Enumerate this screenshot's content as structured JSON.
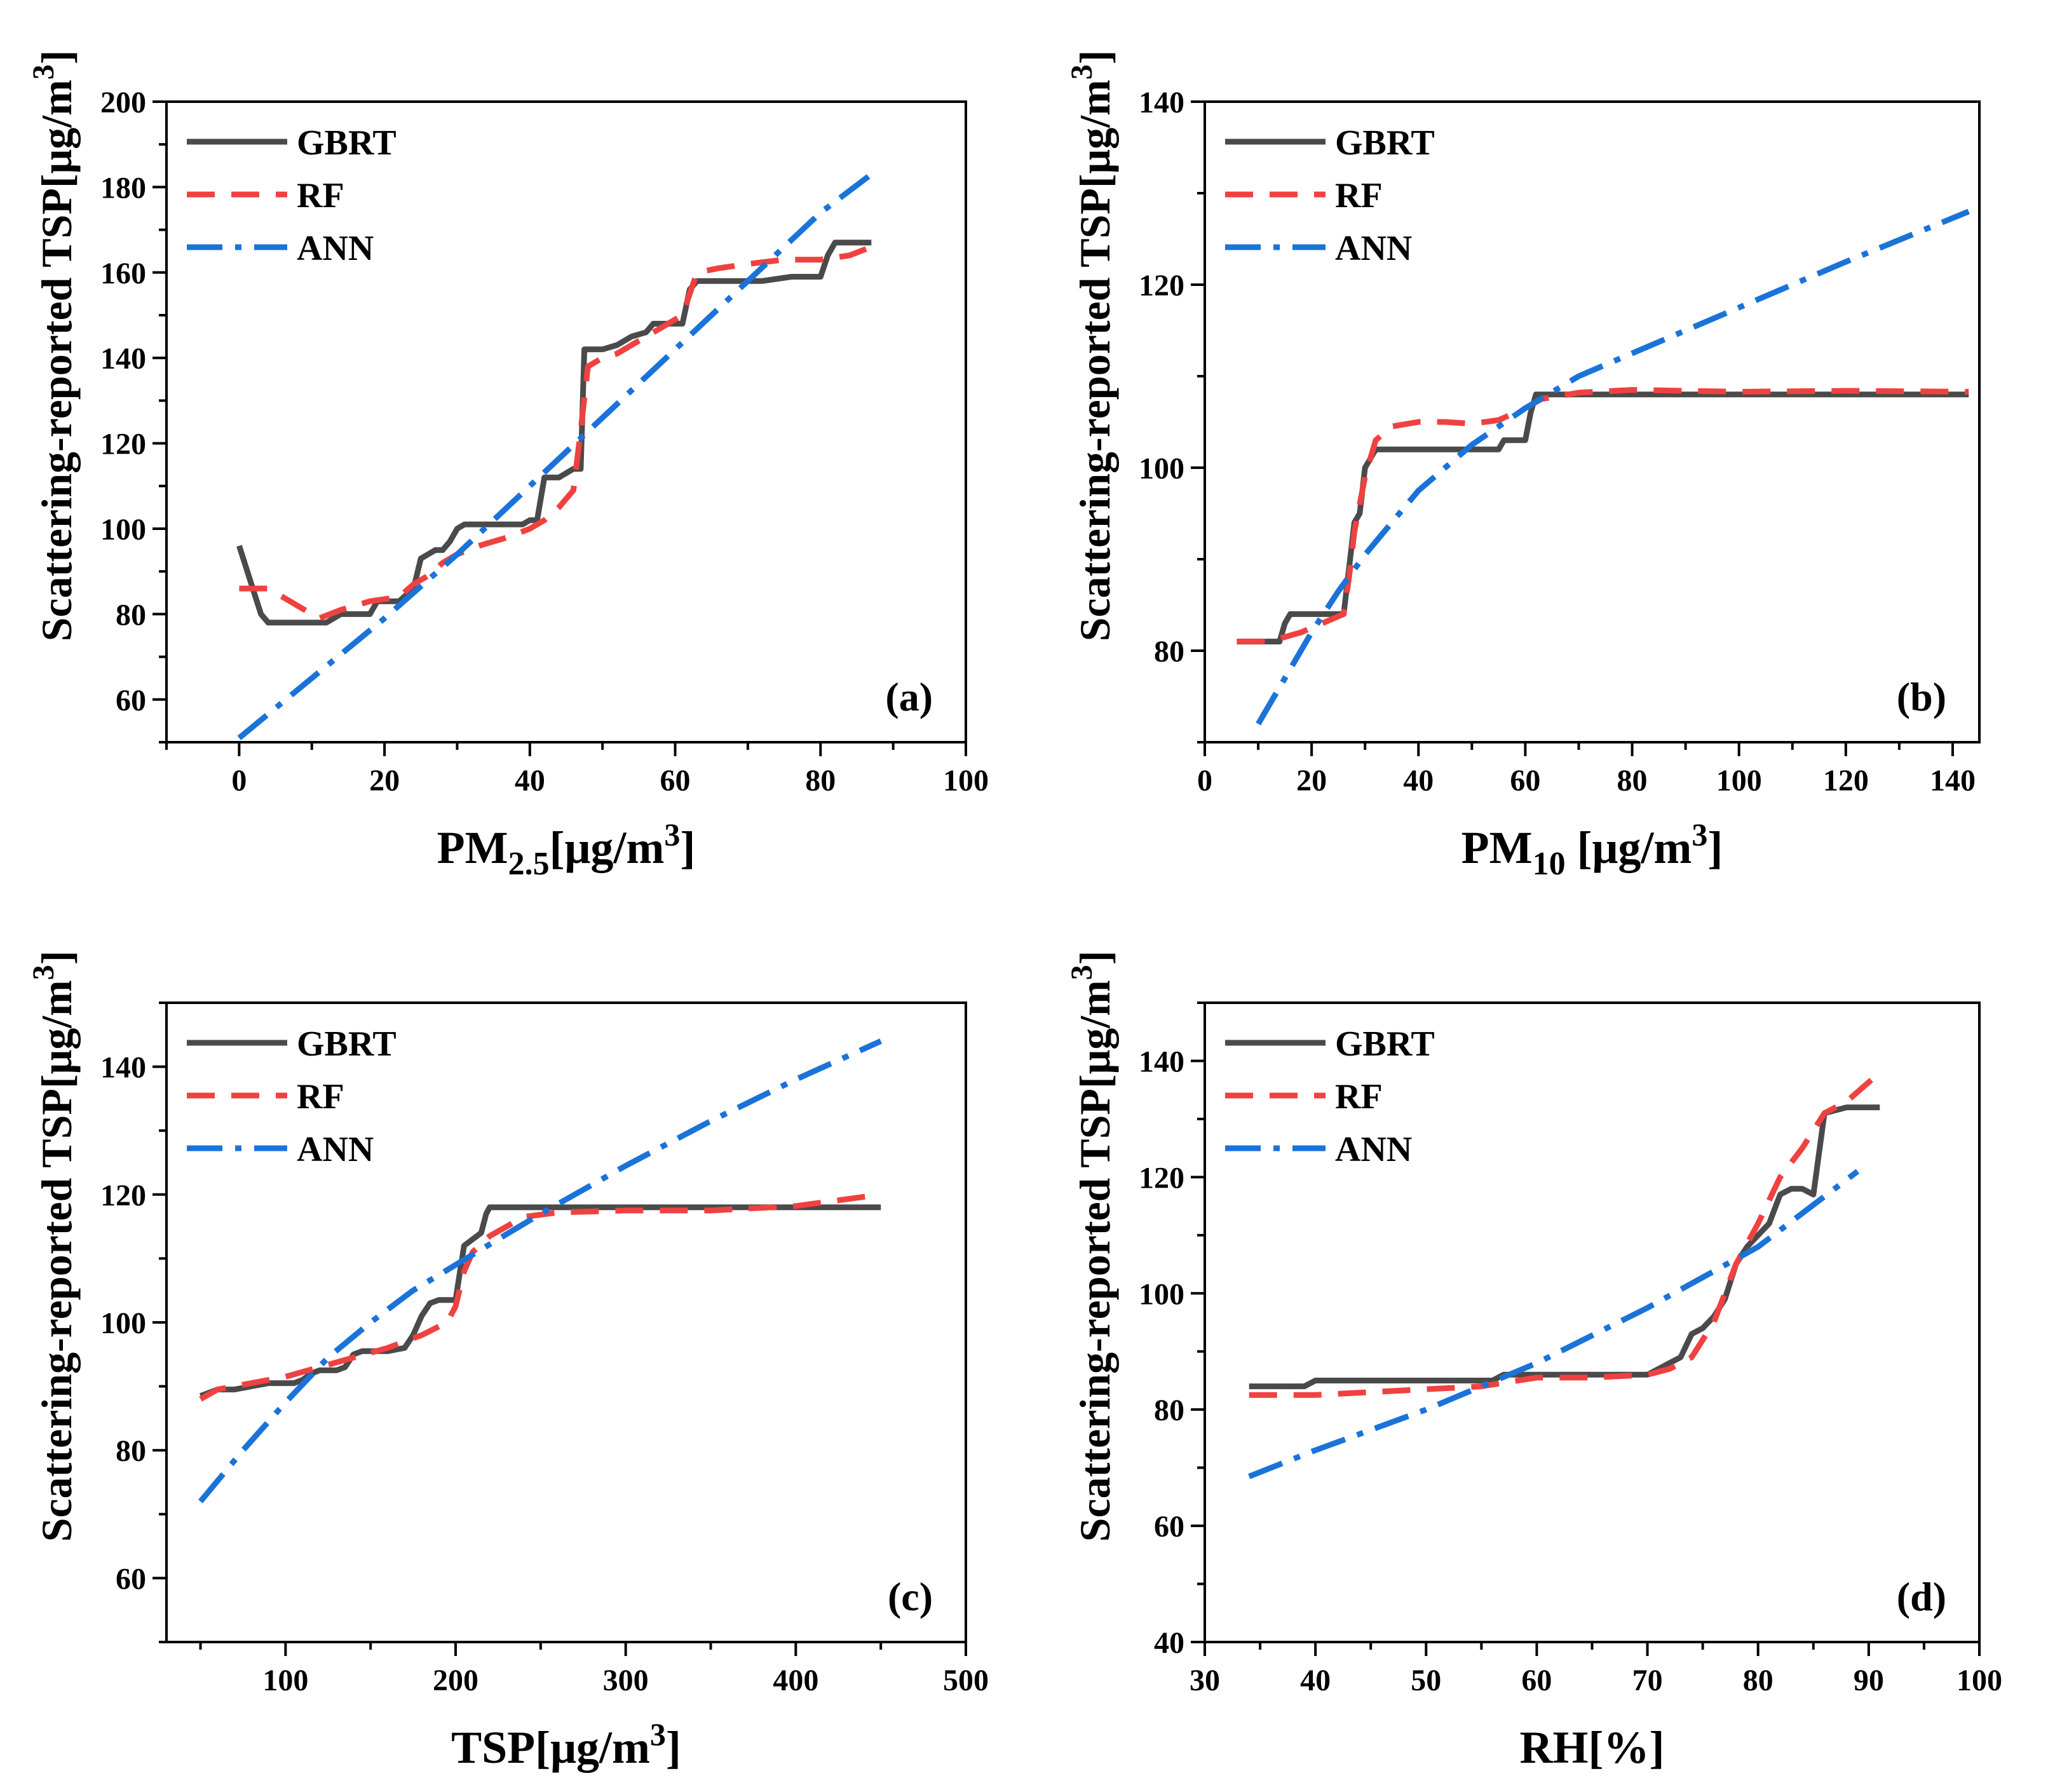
{
  "figure": {
    "legend_labels": [
      "GBRT",
      "RF",
      "ANN"
    ],
    "colors": {
      "GBRT": "#4a4a4a",
      "RF": "#f04141",
      "ANN": "#1a73d9"
    }
  },
  "chart_data": [
    {
      "type": "line",
      "panel": "(a)",
      "xlabel": {
        "main": "PM",
        "sub": "2.5",
        "unit": "[μg/m",
        "sup": "3",
        "close": "]"
      },
      "ylabel": {
        "main": "Scattering-reported TSP[μg/m",
        "sup": "3",
        "close": "]"
      },
      "xlim": [
        -10,
        100
      ],
      "ylim": [
        50,
        200
      ],
      "xticks": [
        0,
        20,
        40,
        60,
        80,
        100
      ],
      "yticks": [
        60,
        80,
        100,
        120,
        140,
        160,
        180,
        200
      ],
      "legend_position": "top-left",
      "series": [
        {
          "name": "GBRT",
          "x": [
            0,
            1.5,
            3,
            4,
            6,
            8,
            10,
            12,
            13,
            14,
            16,
            18,
            19,
            20,
            22,
            24,
            25,
            26,
            27,
            28,
            29,
            30,
            31,
            34,
            36,
            38,
            39,
            40,
            41,
            42,
            43,
            44,
            45,
            46,
            47,
            47.5,
            48,
            50,
            52,
            54,
            56,
            57,
            58,
            60,
            61,
            62,
            63,
            64,
            70,
            72,
            76,
            80,
            81,
            82,
            84,
            87
          ],
          "y": [
            96,
            88,
            80,
            78,
            78,
            78,
            78,
            78,
            79,
            80,
            80,
            80,
            83,
            83,
            83,
            86,
            93,
            94,
            95,
            95,
            97,
            100,
            101,
            101,
            101,
            101,
            101,
            102,
            102,
            112,
            112,
            112,
            113,
            114,
            114,
            142,
            142,
            142,
            143,
            145,
            146,
            148,
            148,
            148,
            148,
            156,
            158,
            158,
            158,
            158,
            159,
            159,
            164,
            167,
            167,
            167
          ]
        },
        {
          "name": "RF",
          "x": [
            0,
            4,
            8,
            11,
            14,
            18,
            22,
            24,
            26,
            28,
            30,
            33,
            37,
            40,
            42,
            44,
            46,
            47,
            48,
            50,
            52,
            55,
            58,
            61,
            63,
            66,
            70,
            75,
            80,
            84,
            87
          ],
          "y": [
            86,
            86,
            82,
            79,
            81,
            83,
            84,
            87,
            89,
            92,
            94,
            96,
            98,
            100,
            102,
            105,
            109,
            123,
            138,
            140,
            141,
            144,
            147,
            150,
            160,
            161,
            162,
            163,
            163,
            164,
            166
          ]
        },
        {
          "name": "ANN",
          "x": [
            0,
            10,
            20,
            30,
            40,
            50,
            60,
            70,
            80,
            87
          ],
          "y": [
            51,
            65,
            79,
            94,
            110,
            126,
            142,
            158,
            174,
            183
          ]
        }
      ]
    },
    {
      "type": "line",
      "panel": "(b)",
      "xlabel": {
        "main": "PM",
        "sub": "10",
        "unit": " [μg/m",
        "sup": "3",
        "close": "]"
      },
      "ylabel": {
        "main": "Scattering-reported TSP[μg/m",
        "sup": "3",
        "close": "]"
      },
      "xlim": [
        0,
        145
      ],
      "ylim": [
        70,
        140
      ],
      "xticks": [
        0,
        20,
        40,
        60,
        80,
        100,
        120,
        140
      ],
      "yticks": [
        80,
        100,
        120,
        140
      ],
      "legend_position": "top-left",
      "series": [
        {
          "name": "GBRT",
          "x": [
            6,
            12,
            14,
            15,
            16,
            18,
            20,
            24,
            26,
            27,
            28,
            29,
            30,
            31,
            32,
            34,
            40,
            50,
            55,
            56,
            60,
            61,
            62,
            63,
            70,
            80,
            100,
            120,
            143
          ],
          "y": [
            81,
            81,
            81,
            83,
            84,
            84,
            84,
            84,
            84,
            89,
            94,
            95,
            100,
            101,
            102,
            102,
            102,
            102,
            102,
            103,
            103,
            106,
            108,
            108,
            108,
            108,
            108,
            108,
            108
          ]
        },
        {
          "name": "RF",
          "x": [
            6,
            12,
            18,
            22,
            26,
            27,
            28,
            29,
            30,
            32,
            35,
            40,
            45,
            50,
            55,
            60,
            63,
            70,
            80,
            100,
            120,
            143
          ],
          "y": [
            81,
            81,
            82,
            83,
            84,
            88,
            93,
            96,
            99,
            103,
            104.5,
            105,
            105,
            104.8,
            105.2,
            106.5,
            107.5,
            108.2,
            108.5,
            108.3,
            108.4,
            108.3
          ]
        },
        {
          "name": "ANN",
          "x": [
            10,
            15,
            20,
            25,
            30,
            35,
            40,
            50,
            60,
            70,
            80,
            100,
            120,
            143
          ],
          "y": [
            72,
            77,
            82,
            86.5,
            90.5,
            94,
            97.5,
            102.5,
            106.5,
            110,
            112.5,
            117.5,
            122.5,
            128
          ]
        }
      ]
    },
    {
      "type": "line",
      "panel": "(c)",
      "xlabel": {
        "main": "TSP",
        "sub": "",
        "unit": "[μg/m",
        "sup": "3",
        "close": "]"
      },
      "ylabel": {
        "main": "Scattering-reported TSP[μg/m",
        "sup": "3",
        "close": "]"
      },
      "xlim": [
        30,
        500
      ],
      "ylim": [
        50,
        150
      ],
      "xticks": [
        100,
        200,
        300,
        400,
        500
      ],
      "yticks": [
        60,
        80,
        100,
        120,
        140
      ],
      "legend_position": "top-left",
      "series": [
        {
          "name": "GBRT",
          "x": [
            50,
            55,
            60,
            70,
            80,
            90,
            100,
            105,
            110,
            115,
            120,
            130,
            135,
            140,
            145,
            150,
            160,
            170,
            175,
            180,
            185,
            190,
            195,
            200,
            202,
            205,
            210,
            215,
            218,
            220,
            225,
            250,
            300,
            350,
            400,
            450
          ],
          "y": [
            88.5,
            89,
            89.5,
            89.5,
            90,
            90.5,
            90.5,
            90.5,
            91,
            92,
            92.5,
            92.5,
            93,
            95,
            95.5,
            95.5,
            95.5,
            96,
            98,
            101,
            103,
            103.5,
            103.5,
            103.5,
            107,
            112,
            113,
            114,
            117,
            118,
            118,
            118,
            118,
            118,
            118,
            118
          ]
        },
        {
          "name": "RF",
          "x": [
            50,
            60,
            80,
            100,
            120,
            140,
            160,
            180,
            195,
            200,
            205,
            210,
            220,
            240,
            260,
            300,
            350,
            400,
            450
          ],
          "y": [
            88,
            89.5,
            90.5,
            91.5,
            93,
            94.5,
            96,
            98,
            100,
            102.5,
            108,
            111,
            113.5,
            116.5,
            117.2,
            117.5,
            117.5,
            118.2,
            120
          ]
        },
        {
          "name": "ANN",
          "x": [
            50,
            75,
            100,
            125,
            150,
            175,
            200,
            225,
            250,
            300,
            350,
            400,
            450
          ],
          "y": [
            72,
            80,
            87.5,
            94.5,
            100,
            105,
            109,
            113,
            117,
            124.5,
            131.5,
            138,
            144
          ]
        }
      ]
    },
    {
      "type": "line",
      "panel": "(d)",
      "xlabel": {
        "main": "RH[%]",
        "sub": "",
        "unit": "",
        "sup": "",
        "close": ""
      },
      "ylabel": {
        "main": "Scattering-reported TSP[μg/m",
        "sup": "3",
        "close": "]"
      },
      "xlim": [
        30,
        100
      ],
      "ylim": [
        40,
        150
      ],
      "xticks": [
        30,
        40,
        50,
        60,
        70,
        80,
        90,
        100
      ],
      "yticks": [
        40,
        60,
        80,
        100,
        120,
        140
      ],
      "legend_position": "top-left",
      "series": [
        {
          "name": "GBRT",
          "x": [
            34,
            39,
            40,
            45,
            50,
            56,
            57,
            60,
            65,
            70,
            71,
            72,
            73,
            74,
            75,
            76,
            77,
            78,
            79,
            80,
            81,
            82,
            83,
            84,
            85,
            86,
            88,
            91
          ],
          "y": [
            84,
            84,
            85,
            85,
            85,
            85,
            86,
            86,
            86,
            86,
            87,
            88,
            89,
            93,
            94,
            96,
            99,
            105,
            108,
            110,
            112,
            117,
            118,
            118,
            117,
            131,
            132,
            132
          ]
        },
        {
          "name": "RF",
          "x": [
            34,
            40,
            45,
            50,
            55,
            60,
            65,
            70,
            72,
            74,
            76,
            78,
            80,
            82,
            84,
            86,
            88,
            91
          ],
          "y": [
            82.5,
            82.5,
            83,
            83.5,
            84,
            85.5,
            85.5,
            86,
            87,
            89,
            95,
            105,
            112,
            120,
            125,
            131,
            133,
            138
          ]
        },
        {
          "name": "ANN",
          "x": [
            34,
            40,
            50,
            60,
            70,
            80,
            89
          ],
          "y": [
            68.5,
            73,
            80,
            88,
            97.5,
            108,
            121
          ]
        }
      ]
    }
  ]
}
